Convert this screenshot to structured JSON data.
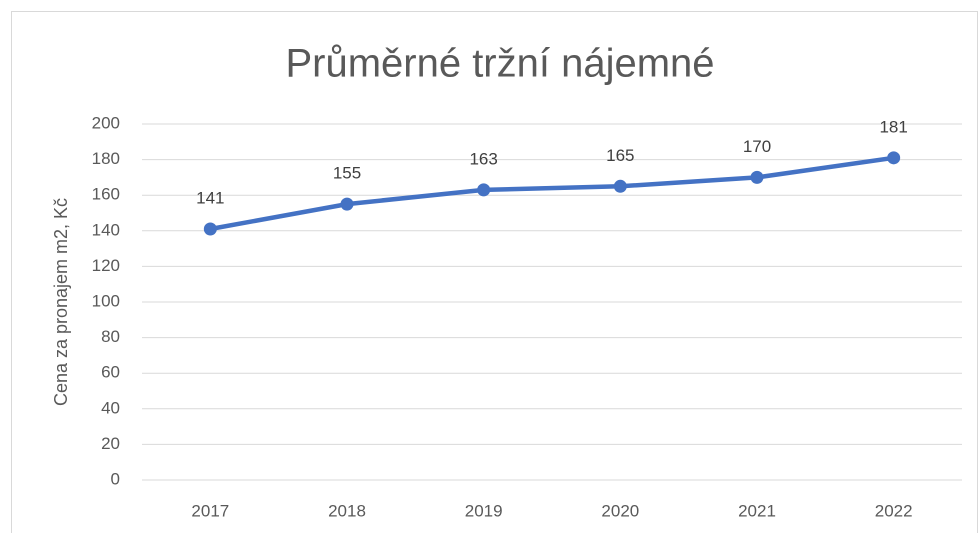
{
  "chart_data": {
    "type": "line",
    "title": "Průměrné tržní nájemné",
    "y_label": "Cena za pronajem m2, Kč",
    "categories": [
      "2017",
      "2018",
      "2019",
      "2020",
      "2021",
      "2022"
    ],
    "series": [
      {
        "name": "Cena za pronajem m2, Kč",
        "color": "#4472c4",
        "values": [
          141,
          155,
          163,
          165,
          170,
          181
        ]
      }
    ],
    "ylim": [
      0,
      200
    ],
    "yticks": [
      0,
      20,
      40,
      60,
      80,
      100,
      120,
      140,
      160,
      180,
      200
    ],
    "grid": true,
    "data_labels": true
  }
}
